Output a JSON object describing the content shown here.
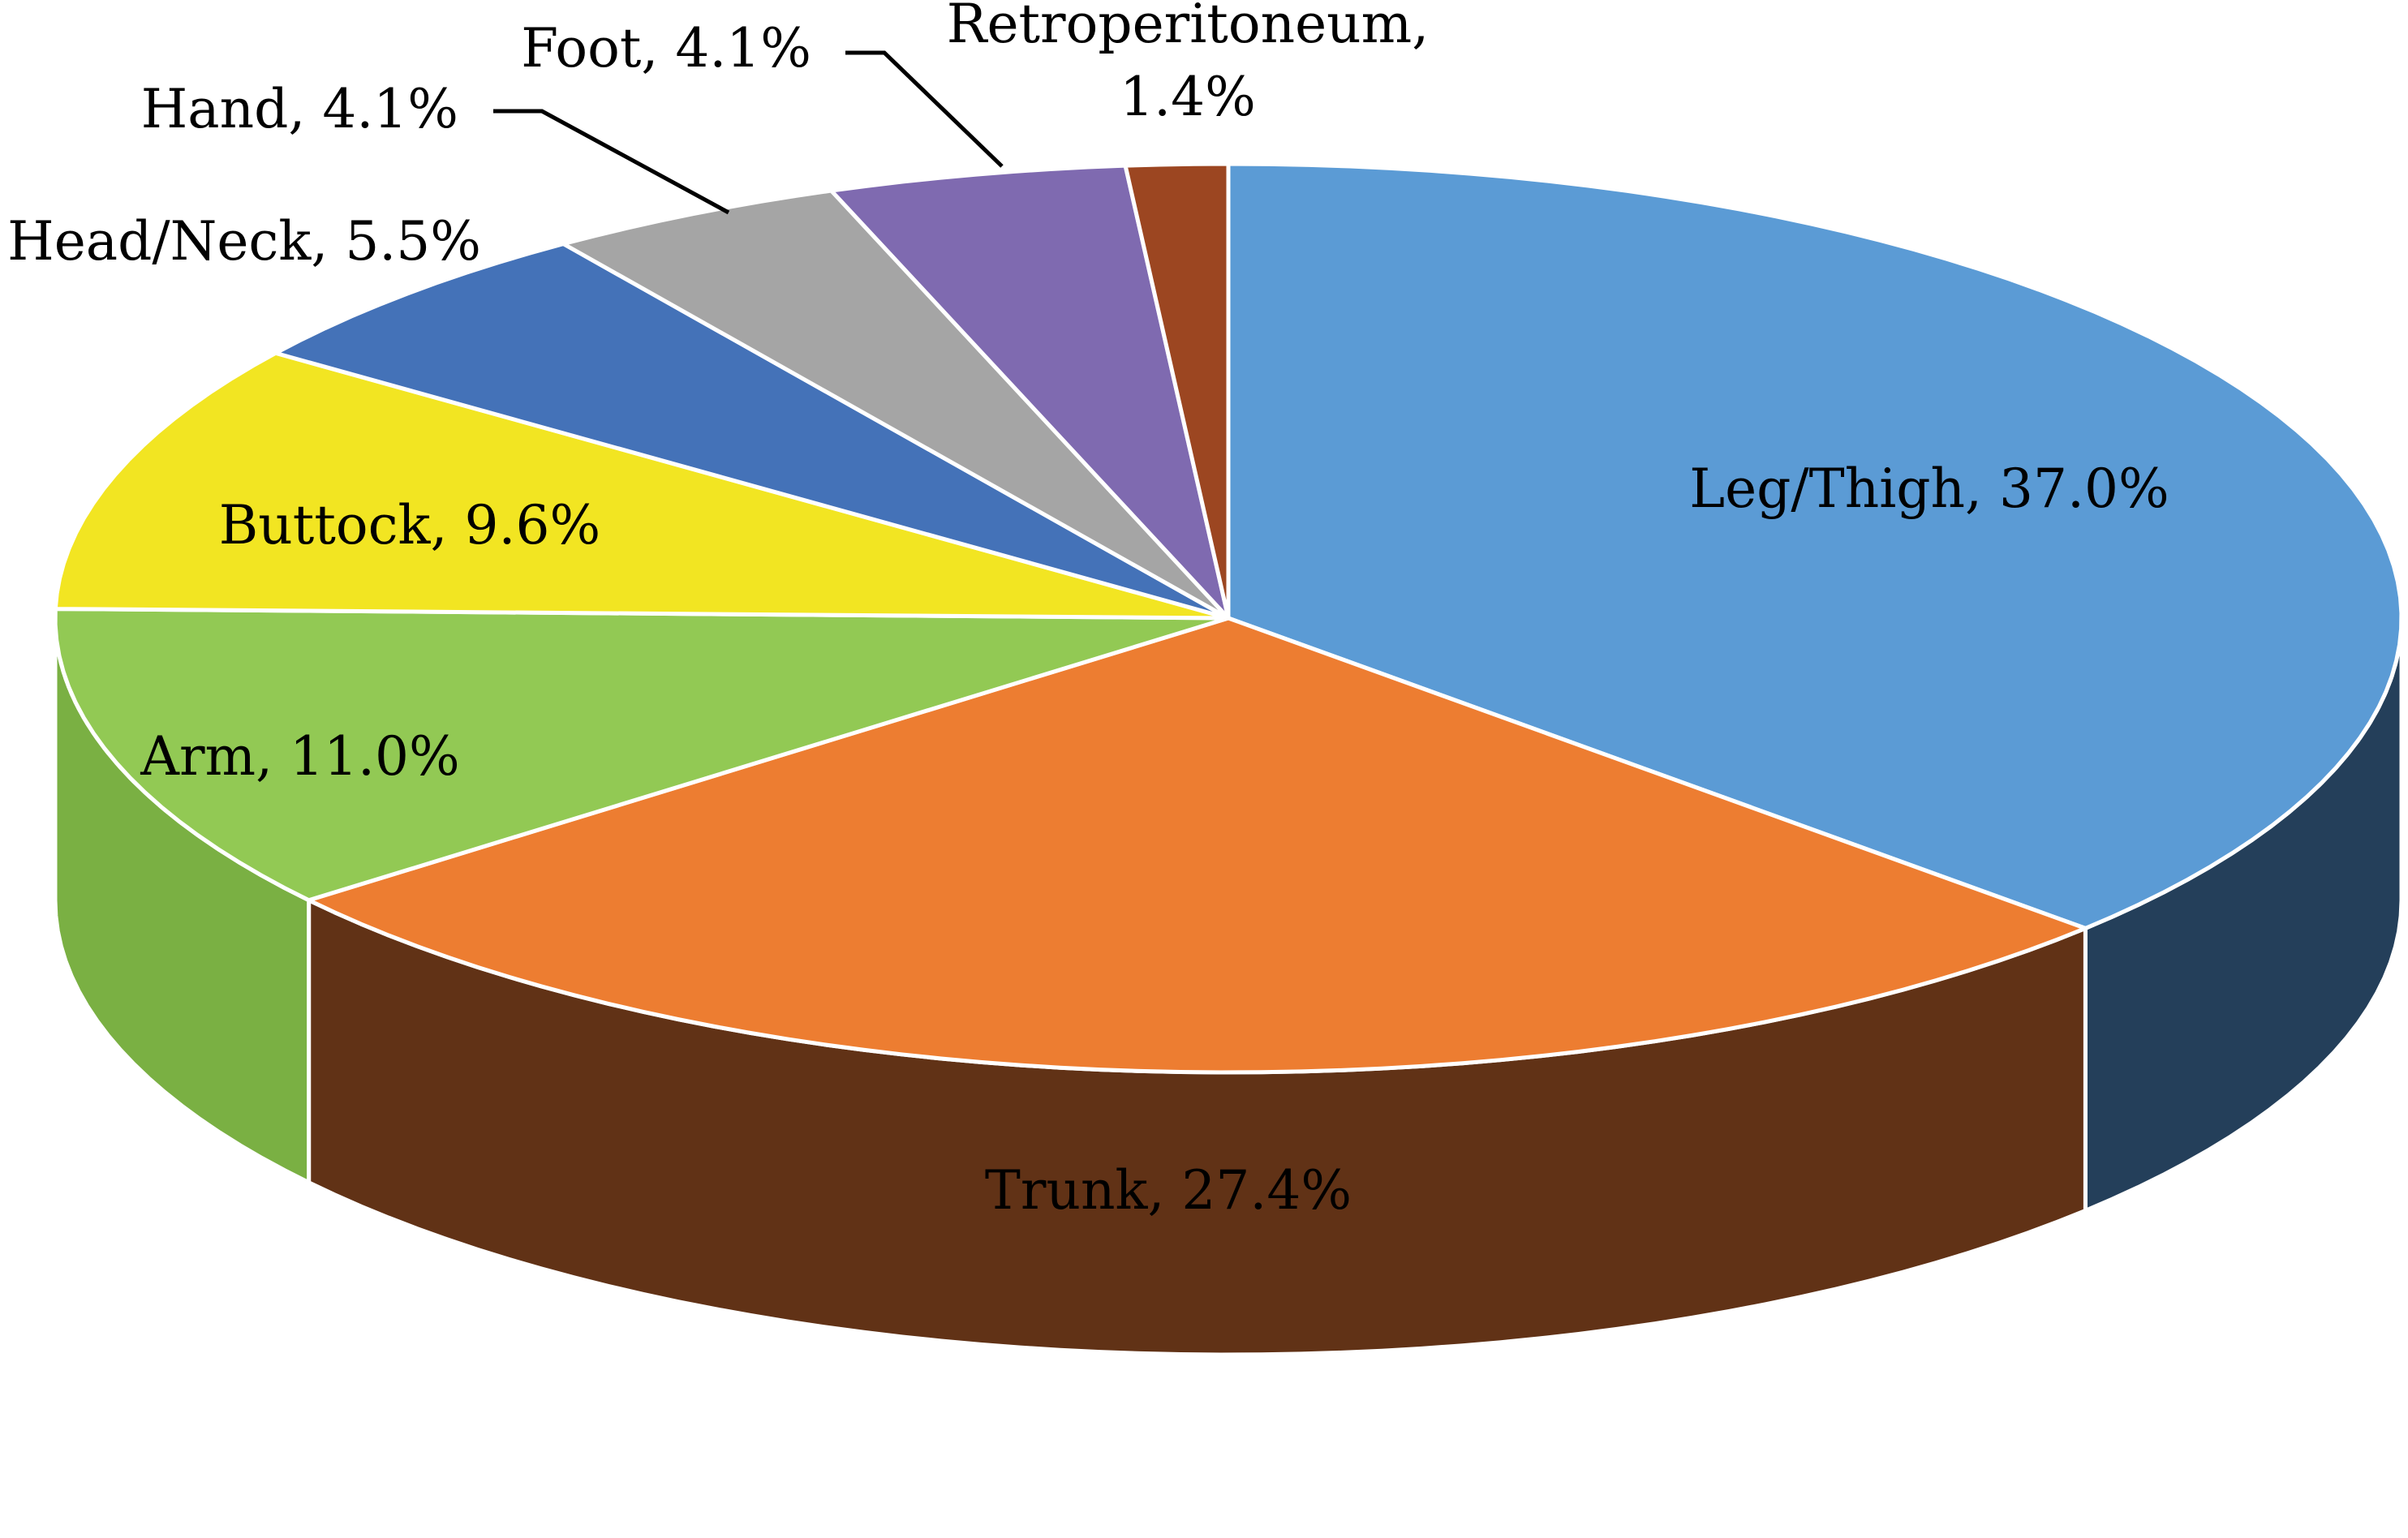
{
  "chart_data": {
    "type": "pie",
    "style": "3d",
    "title": "",
    "start_angle_deg": -90,
    "direction": "clockwise",
    "slices": [
      {
        "label": "Leg/Thigh, 37.0%",
        "category": "Leg/Thigh",
        "value": 37.0,
        "color": "#5B9BD5",
        "side_color": "#243F5A",
        "label_lines": [
          "Leg/Thigh, 37.0%"
        ]
      },
      {
        "label": "Trunk, 27.4%",
        "category": "Trunk",
        "value": 27.4,
        "color": "#ED7D31",
        "side_color": "#613216",
        "label_lines": [
          "Trunk, 27.4%"
        ]
      },
      {
        "label": "Arm, 11.0%",
        "category": "Arm",
        "value": 11.0,
        "color": "#92C954",
        "side_color": "#7AB043",
        "label_lines": [
          "Arm, 11.0%"
        ]
      },
      {
        "label": "Buttock, 9.6%",
        "category": "Buttock",
        "value": 9.6,
        "color": "#F2E522",
        "side_color": "#B8AE19",
        "label_lines": [
          "Buttock, 9.6%"
        ]
      },
      {
        "label": "Head/Neck, 5.5%",
        "category": "Head/Neck",
        "value": 5.5,
        "color": "#4472B8",
        "side_color": "#2E4F80",
        "label_lines": [
          "Head/Neck, 5.5%"
        ]
      },
      {
        "label": "Hand, 4.1%",
        "category": "Hand",
        "value": 4.1,
        "color": "#A5A5A5",
        "side_color": "#707070",
        "label_lines": [
          "Hand, 4.1%"
        ]
      },
      {
        "label": "Foot, 4.1%",
        "category": "Foot",
        "value": 4.1,
        "color": "#7F6AB0",
        "side_color": "#56487A",
        "label_lines": [
          "Foot, 4.1%"
        ]
      },
      {
        "label": "Retroperitoneum, 1.4%",
        "category": "Retroperitoneum",
        "value": 1.4,
        "color": "#9C4621",
        "side_color": "#6B2F16",
        "label_lines": [
          "Retroperitoneum,",
          "1.4%"
        ]
      }
    ],
    "legend": "none"
  }
}
